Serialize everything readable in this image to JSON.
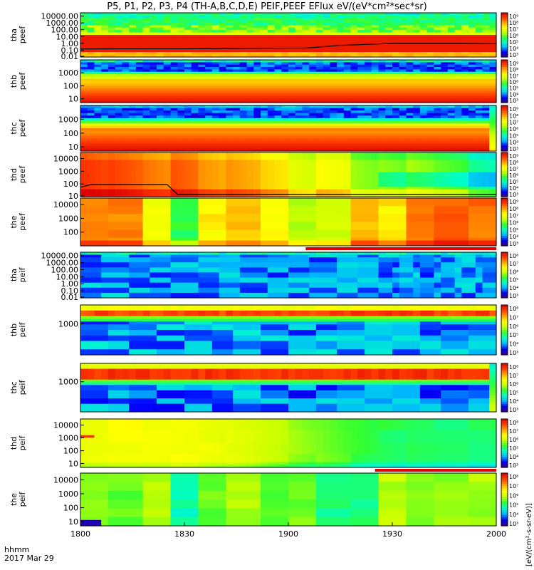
{
  "title": "P5, P1, P2, P3, P4 (TH-A,B,C,D,E) PEIF,PEEF EFlux eV/(eV*cm²*sec*sr)",
  "time_axis_label": "hhmm",
  "date_label": "2017 Mar 29",
  "colorbar_label": "[eV/(cm²-s-sr-eV)]",
  "colorbar_label_top": "(eV/(cm²-s-sr-eV))",
  "palette": [
    "#3c0078",
    "#0000ff",
    "#00b4ff",
    "#00ffc8",
    "#32ff32",
    "#c8ff00",
    "#ffff00",
    "#ffa000",
    "#ff3c00",
    "#dc0000"
  ],
  "chart_data": {
    "type": "heatmap",
    "x_tick_labels": [
      "1800",
      "1830",
      "1900",
      "1930",
      "2000"
    ],
    "x_ticks_minutes": [
      0,
      30,
      60,
      90,
      120
    ],
    "xlim_minutes": [
      0,
      120
    ],
    "panels": [
      {
        "label_line1": "tha",
        "label_line2": "peef",
        "ylog": true,
        "ylim": [
          0.01,
          30000
        ],
        "yticks": [
          "10000.00",
          "1000.00",
          "100.00",
          "10.00",
          "1.00",
          "0.10",
          "0.01"
        ],
        "cbar_ticks": [
          "10⁹",
          "10⁸",
          "10⁷",
          "10⁶",
          "10⁵",
          "10⁴",
          "10³"
        ],
        "profile": "tha_peef",
        "line": {
          "x": [
            0,
            10,
            20,
            30,
            60,
            65,
            75,
            90,
            110,
            120
          ],
          "y": [
            0.15,
            0.16,
            0.16,
            0.16,
            0.2,
            0.2,
            0.5,
            1.0,
            1.0,
            0.9
          ]
        }
      },
      {
        "label_line1": "thb",
        "label_line2": "peef",
        "ylog": true,
        "ylim": [
          5,
          10000
        ],
        "yticks": [
          "1000",
          "100",
          "10"
        ],
        "cbar_ticks": [
          "10⁹",
          "10⁸",
          "10⁷",
          "10⁶",
          "10⁵",
          "10⁴",
          "10³"
        ],
        "profile": "thb_peef"
      },
      {
        "label_line1": "thc",
        "label_line2": "peef",
        "ylog": true,
        "ylim": [
          5,
          10000
        ],
        "yticks": [
          "1000",
          "100",
          "10"
        ],
        "cbar_ticks": [
          "10⁹",
          "10⁸",
          "10⁷",
          "10⁶",
          "10⁵",
          "10⁴",
          "10³"
        ],
        "profile": "thc_peef"
      },
      {
        "label_line1": "thd",
        "label_line2": "peef",
        "ylog": true,
        "ylim": [
          10,
          30000
        ],
        "yticks": [
          "10000",
          "1000",
          "100",
          "10"
        ],
        "cbar_ticks": [
          "10⁹",
          "10⁸",
          "10⁷",
          "10⁶",
          "10⁵",
          "10⁴",
          "10³"
        ],
        "profile": "thd_peef",
        "line": {
          "x": [
            0,
            3,
            8,
            20,
            25,
            28,
            35,
            120
          ],
          "y": [
            55,
            90,
            90,
            90,
            90,
            15,
            15,
            15
          ]
        }
      },
      {
        "label_line1": "the",
        "label_line2": "peef",
        "ylog": true,
        "ylim": [
          10,
          30000
        ],
        "yticks": [
          "10000",
          "1000",
          "100"
        ],
        "cbar_ticks": [
          "10⁹",
          "10⁸",
          "10⁷",
          "10⁶",
          "10⁵",
          "10⁴",
          "10³"
        ],
        "profile": "the_peef",
        "flag_bar": {
          "x": [
            65,
            120
          ],
          "color": "#dc0000"
        }
      },
      {
        "label_line1": "tha",
        "label_line2": "peif",
        "ylog": true,
        "ylim": [
          0.01,
          30000
        ],
        "yticks": [
          "10000.00",
          "1000.00",
          "100.00",
          "10.00",
          "1.00",
          "0.10",
          "0.01"
        ],
        "cbar_ticks": [
          "10⁸",
          "10⁷",
          "10⁶",
          "10⁵",
          "10⁴",
          "10³"
        ],
        "profile": "tha_peif"
      },
      {
        "label_line1": "thb",
        "label_line2": "peif",
        "ylog": true,
        "ylim": [
          5,
          25000
        ],
        "yticks": [
          "1000"
        ],
        "cbar_ticks": [
          "10⁸",
          "10⁷",
          "10⁶",
          "10⁵",
          "10⁴",
          "10³"
        ],
        "profile": "thb_peif"
      },
      {
        "label_line1": "thc",
        "label_line2": "peif",
        "ylog": true,
        "ylim": [
          5,
          25000
        ],
        "yticks": [
          "1000"
        ],
        "cbar_ticks": [
          "10⁸",
          "10⁷",
          "10⁶",
          "10⁵",
          "10⁴",
          "10³"
        ],
        "profile": "thc_peif"
      },
      {
        "label_line1": "thd",
        "label_line2": "peif",
        "ylog": true,
        "ylim": [
          5,
          30000
        ],
        "yticks": [
          "10000",
          "1000",
          "100",
          "10"
        ],
        "cbar_ticks": [
          "10⁸",
          "10⁷",
          "10⁶",
          "10⁵",
          "10⁴",
          "10³"
        ],
        "profile": "thd_peif",
        "flag_bar": {
          "x": [
            85,
            120
          ],
          "color": "#dc0000"
        }
      },
      {
        "label_line1": "the",
        "label_line2": "peif",
        "ylog": true,
        "ylim": [
          5,
          30000
        ],
        "yticks": [
          "10000",
          "1000",
          "100",
          "10"
        ],
        "cbar_ticks": [
          "10⁸",
          "10⁷",
          "10⁶",
          "10⁵",
          "10⁴",
          "10³"
        ],
        "profile": "the_peif"
      }
    ]
  }
}
